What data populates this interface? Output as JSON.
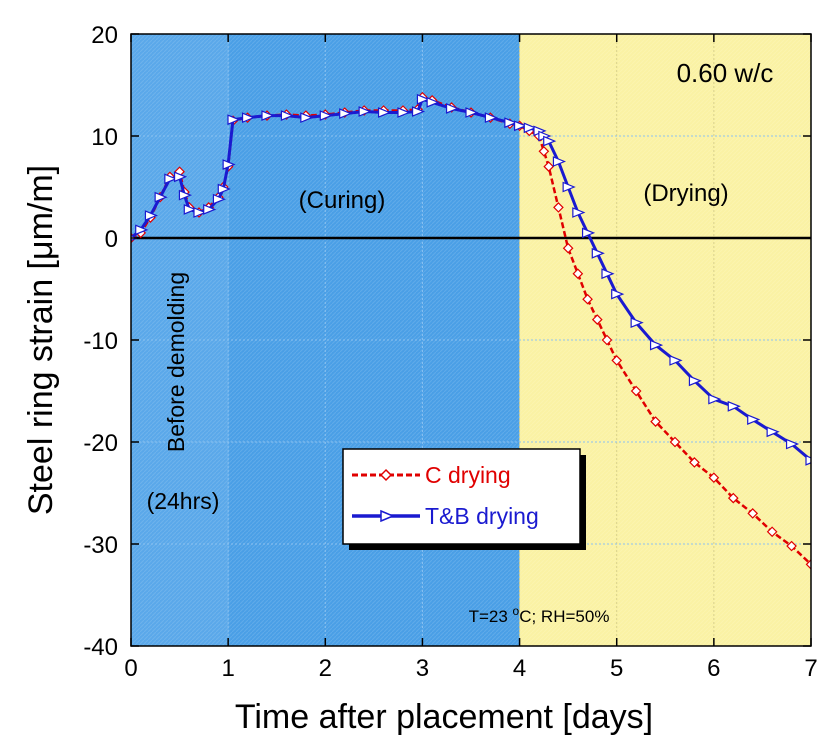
{
  "chart_data": {
    "type": "line",
    "xlabel": "Time after placement [days]",
    "ylabel": "Steel ring strain [μm/m]",
    "xlim": [
      0,
      7
    ],
    "ylim": [
      -40,
      20
    ],
    "x_ticks": [
      "0",
      "1",
      "2",
      "3",
      "4",
      "5",
      "6",
      "7"
    ],
    "y_ticks": [
      "20",
      "10",
      "0",
      "-10",
      "-20",
      "-30",
      "-40"
    ],
    "grid": true,
    "legend_position": "lower-center",
    "colors": {
      "curing_bg": "#4a9fe6",
      "premold_bg": "#5aa8ea",
      "drying_bg": "#faf2a4",
      "c_drying": "#e00000",
      "tb_drying": "#1a1ad0",
      "zero_line": "#000000"
    },
    "regions": [
      {
        "name": "before-demolding",
        "x": [
          0,
          1
        ],
        "color": "#5aa8ea"
      },
      {
        "name": "curing",
        "x": [
          1,
          4
        ],
        "color": "#4a9fe6"
      },
      {
        "name": "drying",
        "x": [
          4,
          7
        ],
        "color": "#faf2a4"
      }
    ],
    "annotations": {
      "wc": "0.60 w/c",
      "curing": "(Curing)",
      "drying": "(Drying)",
      "before_demolding": "Before demolding",
      "hours": "(24hrs)",
      "conditions_prefix": "T=23 ",
      "conditions_sup": "o",
      "conditions_suffix": "C; RH=50%"
    },
    "series": [
      {
        "name": "C drying",
        "color": "#e00000",
        "marker": "diamond",
        "line": "dashed",
        "x": [
          0,
          0.1,
          0.2,
          0.3,
          0.4,
          0.5,
          0.55,
          0.6,
          0.7,
          0.8,
          0.9,
          0.95,
          1.0,
          1.05,
          1.2,
          1.4,
          1.6,
          1.8,
          2.0,
          2.2,
          2.4,
          2.6,
          2.8,
          2.95,
          3.0,
          3.1,
          3.3,
          3.5,
          3.7,
          3.9,
          4.0,
          4.1,
          4.2,
          4.25,
          4.3,
          4.4,
          4.5,
          4.6,
          4.7,
          4.8,
          4.9,
          5.0,
          5.2,
          5.4,
          5.6,
          5.8,
          6.0,
          6.2,
          6.4,
          6.6,
          6.8,
          7.0
        ],
        "y": [
          0,
          0.5,
          2,
          4,
          6,
          6.5,
          4.5,
          3,
          2.5,
          3,
          4,
          5,
          7,
          11.5,
          11.8,
          12,
          12.1,
          12,
          12.1,
          12.3,
          12.5,
          12.5,
          12.5,
          12.6,
          13.8,
          13.5,
          12.8,
          12.3,
          11.8,
          11.2,
          11,
          10.5,
          10,
          8.5,
          7,
          3,
          -1,
          -3.5,
          -6,
          -8,
          -10,
          -12,
          -15,
          -18,
          -20,
          -22,
          -23.5,
          -25.5,
          -27,
          -28.8,
          -30.2,
          -32
        ]
      },
      {
        "name": "T&B drying",
        "color": "#1a1ad0",
        "marker": "triangle",
        "line": "solid",
        "x": [
          0,
          0.1,
          0.2,
          0.3,
          0.4,
          0.5,
          0.55,
          0.6,
          0.7,
          0.8,
          0.9,
          0.95,
          1.0,
          1.05,
          1.2,
          1.4,
          1.6,
          1.8,
          2.0,
          2.2,
          2.4,
          2.6,
          2.8,
          2.95,
          3.0,
          3.1,
          3.3,
          3.5,
          3.7,
          3.9,
          4.0,
          4.1,
          4.2,
          4.25,
          4.3,
          4.4,
          4.5,
          4.6,
          4.7,
          4.8,
          4.9,
          5.0,
          5.2,
          5.4,
          5.6,
          5.8,
          6.0,
          6.2,
          6.4,
          6.6,
          6.8,
          7.0
        ],
        "y": [
          0,
          0.8,
          2.2,
          4,
          5.8,
          6,
          4.2,
          2.8,
          2.5,
          2.8,
          3.8,
          4.8,
          7.2,
          11.6,
          11.8,
          12,
          12,
          11.8,
          12,
          12.2,
          12.4,
          12.3,
          12.3,
          12.4,
          13.6,
          13.3,
          12.7,
          12.3,
          11.8,
          11.3,
          11,
          10.8,
          10.5,
          10,
          9.5,
          7.5,
          5,
          2.5,
          0.5,
          -1.5,
          -3.5,
          -5.5,
          -8.3,
          -10.5,
          -12,
          -14,
          -15.8,
          -16.5,
          -17.8,
          -19,
          -20.2,
          -21.8
        ]
      }
    ]
  }
}
